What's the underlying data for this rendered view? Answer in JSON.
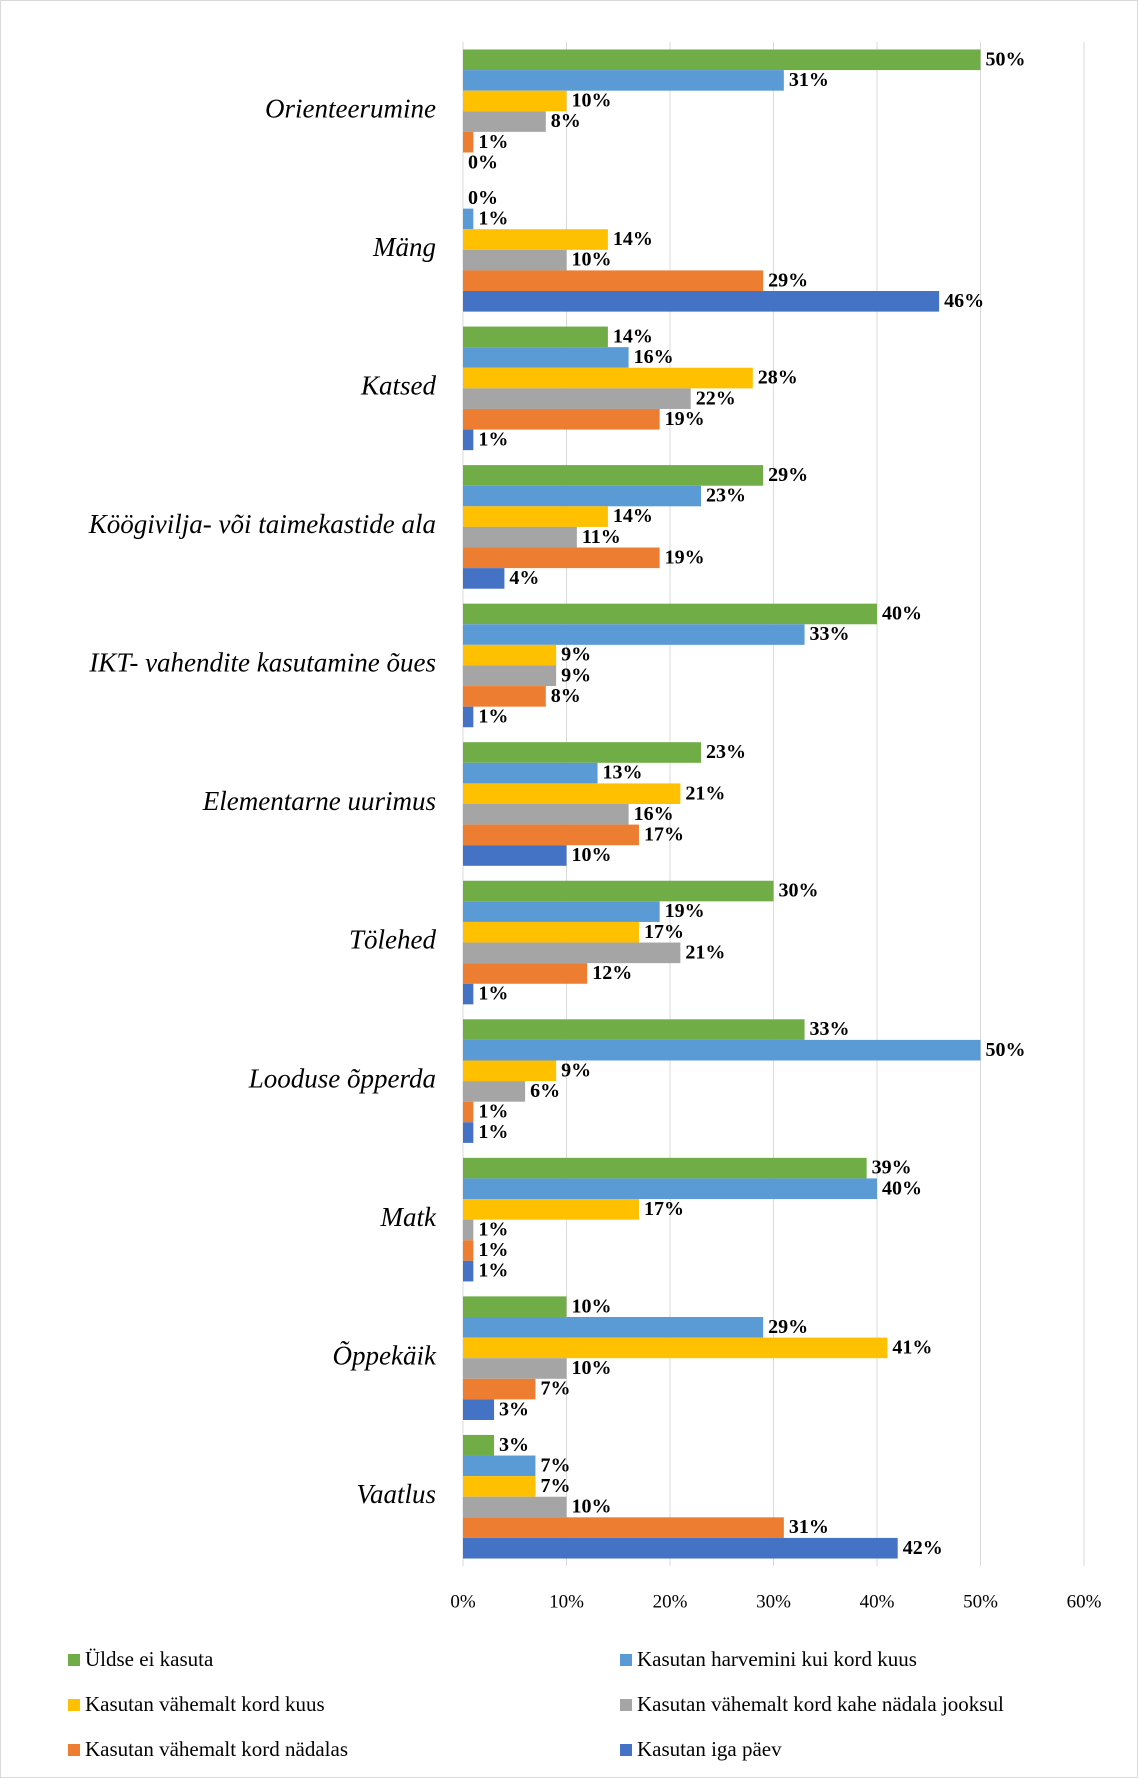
{
  "chart_data": {
    "type": "barh",
    "categories": [
      "Orienteerumine",
      "Mäng",
      "Katsed",
      "Köögivilja- või taimekastide ala",
      "IKT- vahendite kasutamine õues",
      "Elementarne uurimus",
      "Tölehed",
      "Looduse õpperda",
      "Matk",
      "Õppekäik",
      "Vaatlus"
    ],
    "series": [
      {
        "name": "Üldse ei kasuta",
        "color": "#70ad47",
        "values": [
          50,
          0,
          14,
          29,
          40,
          23,
          30,
          33,
          39,
          10,
          3
        ],
        "value_labels": [
          "50%",
          "0%",
          "14%",
          "29%",
          "40%",
          "23%",
          "30%",
          "33%",
          "39%",
          "10%",
          "3%"
        ]
      },
      {
        "name": "Kasutan harvemini kui kord kuus",
        "color": "#5b9bd5",
        "values": [
          31,
          1,
          16,
          23,
          33,
          13,
          19,
          50,
          40,
          29,
          7
        ],
        "value_labels": [
          "31%",
          "1%",
          "16%",
          "23%",
          "33%",
          "13%",
          "19%",
          "50%",
          "40%",
          "29%",
          "7%"
        ]
      },
      {
        "name": "Kasutan vähemalt kord kuus",
        "color": "#ffc000",
        "values": [
          10,
          14,
          28,
          14,
          9,
          21,
          17,
          9,
          17,
          41,
          7
        ],
        "value_labels": [
          "10%",
          "14%",
          "28%",
          "14%",
          "9%",
          "21%",
          "17%",
          "9%",
          "17%",
          "41%",
          "7%"
        ]
      },
      {
        "name": "Kasutan vähemalt kord kahe nädala jooksul",
        "color": "#a5a5a5",
        "values": [
          8,
          10,
          22,
          11,
          9,
          16,
          21,
          6,
          1,
          10,
          10
        ],
        "value_labels": [
          "8%",
          "10%",
          "22%",
          "11%",
          "9%",
          "16%",
          "21%",
          "6%",
          "1%",
          "10%",
          "10%"
        ]
      },
      {
        "name": "Kasutan vähemalt kord nädalas",
        "color": "#ed7d31",
        "values": [
          1,
          29,
          19,
          19,
          8,
          17,
          12,
          1,
          1,
          7,
          31
        ],
        "value_labels": [
          "1%",
          "29%",
          "19%",
          "19%",
          "8%",
          "17%",
          "12%",
          "1%",
          "1%",
          "7%",
          "31%"
        ]
      },
      {
        "name": "Kasutan iga päev",
        "color": "#4472c4",
        "values": [
          0,
          46,
          1,
          4,
          1,
          10,
          1,
          1,
          1,
          3,
          42
        ],
        "value_labels": [
          "0%",
          "46%",
          "1%",
          "4%",
          "1%",
          "10%",
          "1%",
          "1%",
          "1%",
          "3%",
          "42%"
        ]
      }
    ],
    "xlim": [
      0,
      60
    ],
    "xticks": [
      {
        "value": 0,
        "label": "0%"
      },
      {
        "value": 10,
        "label": "10%"
      },
      {
        "value": 20,
        "label": "20%"
      },
      {
        "value": 30,
        "label": "30%"
      },
      {
        "value": 40,
        "label": "40%"
      },
      {
        "value": 50,
        "label": "50%"
      },
      {
        "value": 60,
        "label": "60%"
      }
    ],
    "grid": true,
    "legend": "bottom"
  }
}
